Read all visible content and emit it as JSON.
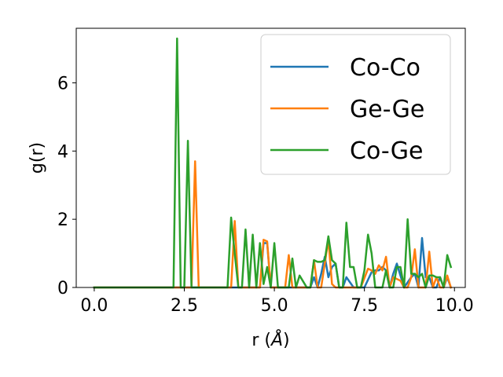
{
  "chart_data": {
    "type": "line",
    "xlabel": "r (",
    "xlabel_unit": "Å",
    "xlabel_close": ")",
    "ylabel": "g(r)",
    "xlim": [
      -0.5,
      10.3
    ],
    "ylim": [
      0,
      7.6
    ],
    "xticks": [
      0.0,
      2.5,
      5.0,
      7.5,
      10.0
    ],
    "xtick_labels": [
      "0.0",
      "2.5",
      "5.0",
      "7.5",
      "10.0"
    ],
    "yticks": [
      0,
      2,
      4,
      6
    ],
    "ytick_labels": [
      "0",
      "2",
      "4",
      "6"
    ],
    "grid": false,
    "legend_position": "top-right",
    "series": [
      {
        "name": "Co-Co",
        "color": "#1f77b4",
        "x": [
          0.0,
          2.2,
          2.3,
          2.4,
          2.5,
          2.6,
          2.7,
          2.8,
          2.9,
          3.0,
          3.7,
          3.8,
          3.9,
          4.0,
          4.3,
          4.4,
          4.5,
          4.6,
          4.7,
          4.8,
          4.9,
          5.2,
          5.4,
          5.5,
          5.6,
          6.0,
          6.1,
          6.2,
          6.3,
          6.4,
          6.5,
          6.6,
          6.7,
          6.8,
          6.9,
          7.0,
          7.2,
          7.5,
          7.7,
          7.8,
          7.9,
          8.0,
          8.1,
          8.2,
          8.3,
          8.4,
          8.6,
          8.8,
          8.9,
          9.0,
          9.1,
          9.2,
          9.3,
          9.4,
          9.5,
          9.6,
          9.7,
          9.8,
          9.9
        ],
        "values": [
          0,
          0,
          0,
          0,
          0,
          0,
          0,
          0,
          0,
          0,
          0,
          0,
          0,
          0,
          0,
          0,
          0,
          0,
          1.3,
          1.3,
          0,
          0,
          0,
          0,
          0,
          0,
          0.3,
          0,
          0.4,
          0.9,
          0.3,
          0.6,
          0.7,
          0,
          0,
          0.3,
          0,
          0,
          0.45,
          0.5,
          0.5,
          0.6,
          0.5,
          0,
          0.4,
          0.7,
          0,
          0.3,
          0.4,
          0,
          1.45,
          0.3,
          0.3,
          0,
          0,
          0.3,
          0,
          0.3,
          0
        ]
      },
      {
        "name": "Ge-Ge",
        "color": "#ff7f0e",
        "x": [
          0.0,
          2.6,
          2.7,
          2.8,
          2.9,
          3.0,
          3.7,
          3.8,
          3.9,
          4.0,
          4.3,
          4.4,
          4.5,
          4.6,
          4.7,
          4.8,
          4.9,
          5.2,
          5.3,
          5.4,
          5.5,
          5.9,
          6.0,
          6.1,
          6.2,
          6.3,
          6.4,
          6.5,
          6.6,
          6.7,
          6.8,
          7.0,
          7.4,
          7.6,
          7.7,
          7.8,
          7.9,
          8.0,
          8.1,
          8.2,
          8.3,
          8.5,
          8.6,
          8.7,
          8.8,
          8.9,
          9.0,
          9.2,
          9.3,
          9.4,
          9.5,
          9.6,
          9.7,
          9.8,
          9.9
        ],
        "values": [
          0,
          0,
          0,
          3.7,
          0,
          0,
          0,
          0,
          1.95,
          0,
          0,
          0,
          0,
          0,
          1.4,
          1.35,
          0,
          0,
          0,
          0.95,
          0,
          0,
          0,
          0.8,
          0,
          0,
          0.7,
          1.4,
          0.1,
          0,
          0,
          0,
          0,
          0.55,
          0.5,
          0.4,
          0.65,
          0.5,
          0.9,
          0,
          0.3,
          0.2,
          0,
          0,
          0.3,
          1.12,
          0,
          0,
          1.05,
          0,
          0.3,
          0,
          0,
          0.35,
          0
        ]
      },
      {
        "name": "Co-Ge",
        "color": "#2ca02c",
        "x": [
          0.0,
          2.2,
          2.3,
          2.4,
          2.5,
          2.6,
          2.7,
          2.8,
          3.6,
          3.7,
          3.8,
          3.9,
          4.0,
          4.1,
          4.2,
          4.3,
          4.4,
          4.5,
          4.6,
          4.7,
          4.8,
          4.9,
          5.0,
          5.1,
          5.2,
          5.4,
          5.5,
          5.6,
          5.7,
          5.9,
          6.0,
          6.1,
          6.2,
          6.3,
          6.4,
          6.5,
          6.6,
          6.7,
          6.8,
          6.9,
          7.0,
          7.1,
          7.2,
          7.3,
          7.4,
          7.5,
          7.6,
          7.7,
          7.8,
          8.0,
          8.1,
          8.2,
          8.3,
          8.4,
          8.5,
          8.6,
          8.7,
          8.8,
          8.9,
          9.0,
          9.1,
          9.2,
          9.3,
          9.4,
          9.5,
          9.6,
          9.7,
          9.8,
          9.9
        ],
        "values": [
          0,
          0,
          7.3,
          0,
          0,
          4.3,
          0,
          0,
          0,
          0,
          2.05,
          1.0,
          0,
          0,
          1.7,
          0,
          1.55,
          0,
          1.3,
          0.1,
          0.6,
          0,
          1.3,
          0,
          0,
          0,
          0.85,
          0,
          0.35,
          0,
          0,
          0.8,
          0.75,
          0.75,
          0.8,
          1.5,
          0.8,
          0.7,
          0,
          0,
          1.9,
          0.6,
          0.6,
          0,
          0,
          0.5,
          1.55,
          1.0,
          0,
          0,
          0.5,
          0,
          0,
          0.6,
          0.6,
          0,
          2.0,
          0.4,
          0.4,
          0.3,
          0.4,
          0,
          0.35,
          0.35,
          0.3,
          0.3,
          0,
          0.95,
          0.6
        ]
      }
    ]
  }
}
